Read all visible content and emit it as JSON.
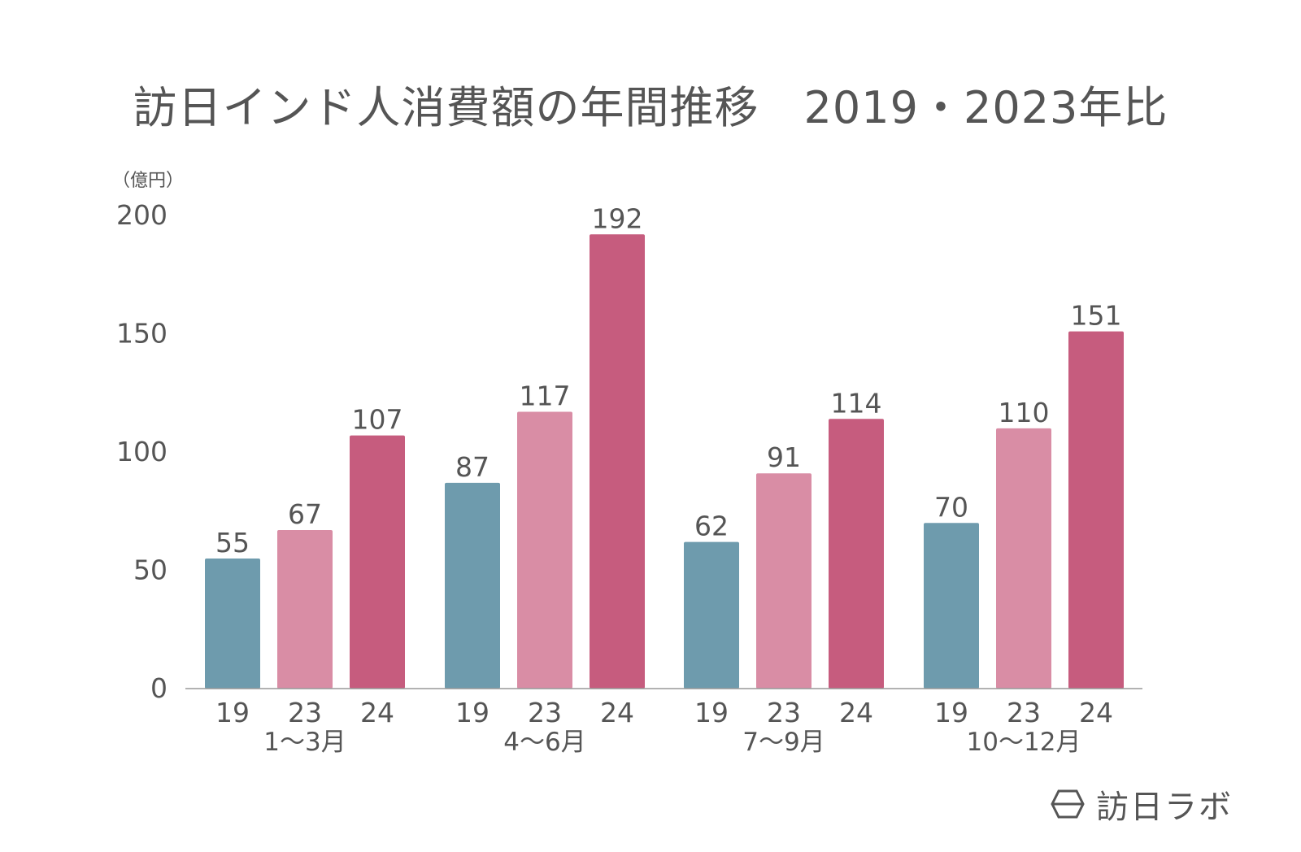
{
  "title": "訪日インド人消費額の年間推移　2019・2023年比",
  "unit_label": "（億円）",
  "logo_text": "訪日ラボ",
  "colors": {
    "19": "#6e9bad",
    "23": "#d98da5",
    "24": "#c65c7e",
    "text": "#555555",
    "axis": "#999999"
  },
  "chart_data": {
    "type": "bar",
    "title": "訪日インド人消費額の年間推移　2019・2023年比",
    "ylabel": "（億円）",
    "ylim": [
      0,
      200
    ],
    "yticks": [
      0,
      50,
      100,
      150,
      200
    ],
    "grid": false,
    "groups": [
      "1〜3月",
      "4〜6月",
      "7〜9月",
      "10〜12月"
    ],
    "sub_categories": [
      "19",
      "23",
      "24"
    ],
    "series": [
      {
        "name": "19",
        "values": [
          55,
          87,
          62,
          70
        ]
      },
      {
        "name": "23",
        "values": [
          67,
          117,
          91,
          110
        ]
      },
      {
        "name": "24",
        "values": [
          107,
          192,
          114,
          151
        ]
      }
    ]
  }
}
